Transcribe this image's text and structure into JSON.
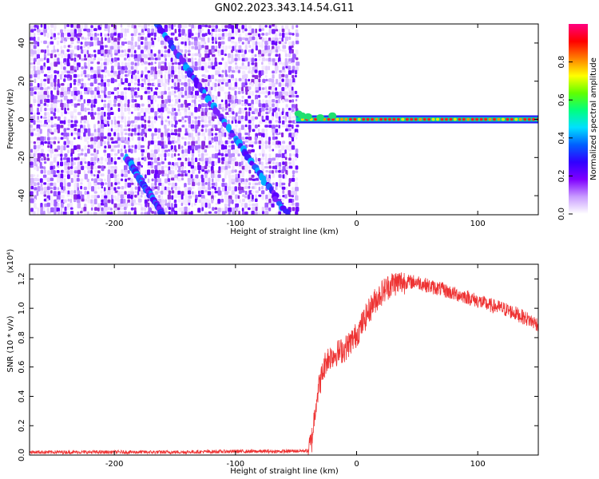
{
  "title": "GN02.2023.343.14.54.G11",
  "chart_data": [
    {
      "type": "heatmap",
      "xlabel": "Height of straight line (km)",
      "ylabel": "Frequency (Hz)",
      "xlim": [
        -270,
        150
      ],
      "ylim": [
        -50,
        50
      ],
      "xticks": [
        -200,
        -100,
        0,
        100
      ],
      "yticks": [
        -40,
        -20,
        0,
        20,
        40
      ],
      "grid": false,
      "colorbar": {
        "label": "Normalized spectral amplitude",
        "range": [
          0,
          1
        ],
        "ticks": [
          0.0,
          0.2,
          0.4,
          0.6,
          0.8
        ],
        "colors": [
          "#ffffff",
          "#c89bff",
          "#8000ff",
          "#3000ff",
          "#0060ff",
          "#00e0ff",
          "#00ff80",
          "#60ff00",
          "#ffff00",
          "#ff8000",
          "#ff0000",
          "#ff0080"
        ]
      },
      "features": {
        "noise_region_x": [
          -270,
          -50
        ],
        "diagonal_lines": [
          {
            "x": [
              -165,
              -57
            ],
            "y": [
              50,
              -50
            ]
          },
          {
            "x": [
              -190,
              -160
            ],
            "y": [
              -20,
              -50
            ]
          }
        ],
        "carrier_line": {
          "x": [
            -50,
            150
          ],
          "y": 0,
          "peak_amplitude": 0.9
        }
      }
    },
    {
      "type": "line",
      "xlabel": "Height of straight line (km)",
      "ylabel": "SNR (10 * v/v)",
      "y_multiplier": "(x10⁴)",
      "xlim": [
        -270,
        150
      ],
      "ylim": [
        0,
        1.3
      ],
      "xticks": [
        -200,
        -100,
        0,
        100
      ],
      "yticks": [
        0.0,
        0.2,
        0.4,
        0.6,
        0.8,
        1.0,
        1.2
      ],
      "grid": false,
      "series": [
        {
          "color": "#ee3333",
          "x": [
            -270,
            -200,
            -150,
            -100,
            -60,
            -40,
            -37,
            -35,
            -33,
            -30,
            -25,
            -20,
            -15,
            -10,
            -5,
            0,
            5,
            10,
            15,
            20,
            25,
            30,
            40,
            50,
            60,
            70,
            80,
            90,
            100,
            110,
            120,
            130,
            140,
            150
          ],
          "y": [
            0.02,
            0.02,
            0.02,
            0.025,
            0.025,
            0.03,
            0.1,
            0.25,
            0.4,
            0.5,
            0.65,
            0.68,
            0.7,
            0.72,
            0.77,
            0.82,
            0.9,
            0.98,
            1.05,
            1.1,
            1.14,
            1.17,
            1.18,
            1.18,
            1.15,
            1.13,
            1.1,
            1.08,
            1.05,
            1.02,
            1.0,
            0.97,
            0.93,
            0.89
          ]
        }
      ]
    }
  ]
}
